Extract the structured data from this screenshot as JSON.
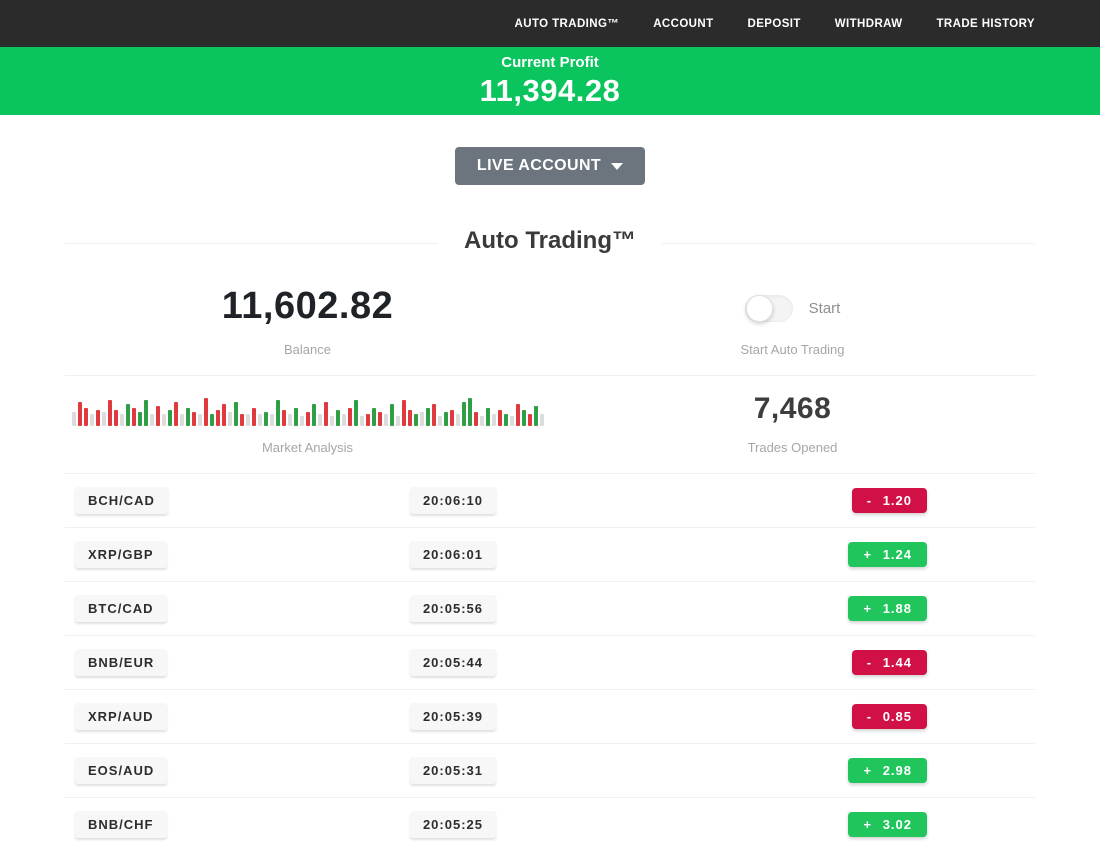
{
  "nav": {
    "items": [
      "AUTO TRADING™",
      "ACCOUNT",
      "DEPOSIT",
      "WITHDRAW",
      "TRADE HISTORY"
    ]
  },
  "profit_banner": {
    "label": "Current Profit",
    "value": "11,394.28"
  },
  "account_selector": {
    "label": "LIVE ACCOUNT"
  },
  "page": {
    "title": "Auto Trading™"
  },
  "stats": {
    "balance": {
      "value": "11,602.82",
      "label": "Balance"
    },
    "start": {
      "toggle_label": "Start",
      "label": "Start Auto Trading",
      "enabled": false
    },
    "market": {
      "label": "Market Analysis"
    },
    "trades_opened": {
      "value": "7,468",
      "label": "Trades Opened"
    }
  },
  "market_analysis": {
    "type": "bar",
    "bars": [
      "n14",
      "r24",
      "r18",
      "n12",
      "r16",
      "n14",
      "r26",
      "r16",
      "n12",
      "g22",
      "r18",
      "g14",
      "g26",
      "n12",
      "r20",
      "n12",
      "g16",
      "r24",
      "n12",
      "g18",
      "r14",
      "n12",
      "r28",
      "g12",
      "r16",
      "r22",
      "n14",
      "g24",
      "r12",
      "n12",
      "r18",
      "n12",
      "g14",
      "n12",
      "g26",
      "r16",
      "n12",
      "g18",
      "n10",
      "r14",
      "g22",
      "n12",
      "r24",
      "n10",
      "g16",
      "n12",
      "r18",
      "g26",
      "n10",
      "r12",
      "g18",
      "r14",
      "n12",
      "g22",
      "n10",
      "r26",
      "r16",
      "g12",
      "n14",
      "g18",
      "r22",
      "n10",
      "g14",
      "r16",
      "n12",
      "g24",
      "g28",
      "r14",
      "n10",
      "g18",
      "n12",
      "r16",
      "g12",
      "n10",
      "r22",
      "g16",
      "r12",
      "g20",
      "n12"
    ]
  },
  "trades": [
    {
      "pair": "BCH/CAD",
      "time": "20:06:10",
      "result": "- 1.20",
      "direction": "loss"
    },
    {
      "pair": "XRP/GBP",
      "time": "20:06:01",
      "result": "+ 1.24",
      "direction": "gain"
    },
    {
      "pair": "BTC/CAD",
      "time": "20:05:56",
      "result": "+ 1.88",
      "direction": "gain"
    },
    {
      "pair": "BNB/EUR",
      "time": "20:05:44",
      "result": "- 1.44",
      "direction": "loss"
    },
    {
      "pair": "XRP/AUD",
      "time": "20:05:39",
      "result": "- 0.85",
      "direction": "loss"
    },
    {
      "pair": "EOS/AUD",
      "time": "20:05:31",
      "result": "+ 2.98",
      "direction": "gain"
    },
    {
      "pair": "BNB/CHF",
      "time": "20:05:25",
      "result": "+ 3.02",
      "direction": "gain"
    }
  ],
  "colors": {
    "topbar": "#2b2b2b",
    "banner_green": "#0ac55e",
    "gain_green": "#20c65c",
    "loss_red": "#d11046",
    "bar_red": "#e0393e",
    "bar_green": "#2f9e44",
    "bar_neutral": "#dcdcdc",
    "button_gray": "#6c757d"
  }
}
